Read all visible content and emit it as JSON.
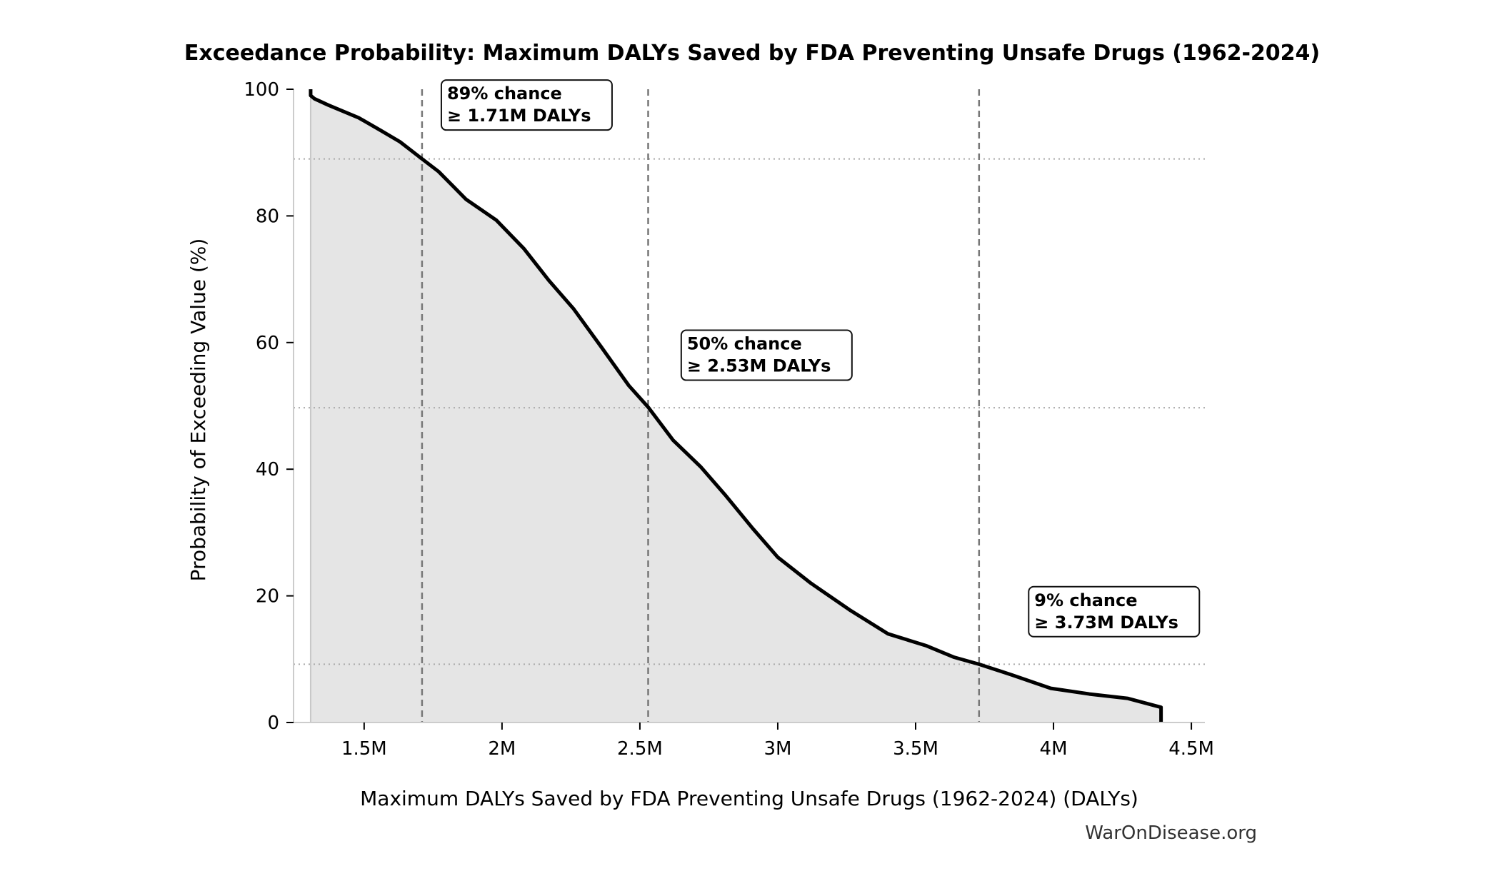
{
  "chart_data": {
    "type": "area",
    "title": "Exceedance Probability: Maximum DALYs Saved by FDA Preventing Unsafe Drugs (1962-2024)",
    "xlabel": "Maximum DALYs Saved by FDA Preventing Unsafe Drugs (1962-2024) (DALYs)",
    "ylabel": "Probability of Exceeding Value (%)",
    "xlim": [
      1.244,
      4.549
    ],
    "ylim": [
      0,
      100
    ],
    "x_unit": "millions of DALYs",
    "xticks": [
      1.5,
      2,
      2.5,
      3,
      3.5,
      4,
      4.5
    ],
    "xtick_labels": [
      "1.5M",
      "2M",
      "2.5M",
      "3M",
      "3.5M",
      "4M",
      "4.5M"
    ],
    "yticks": [
      0,
      20,
      40,
      60,
      80,
      100
    ],
    "ytick_labels": [
      "0",
      "20",
      "40",
      "60",
      "80",
      "100"
    ],
    "grid": false,
    "line_color": "#000000",
    "fill_color": "#e5e5e5",
    "series": [
      {
        "x": [
          1.306,
          1.306,
          1.32,
          1.37,
          1.48,
          1.56,
          1.63,
          1.71,
          1.77,
          1.87,
          1.98,
          2.08,
          2.17,
          2.26,
          2.36,
          2.46,
          2.53,
          2.62,
          2.72,
          2.81,
          2.91,
          3.0,
          3.12,
          3.26,
          3.4,
          3.54,
          3.64,
          3.73,
          3.85,
          3.99,
          4.13,
          4.27,
          4.39,
          4.39
        ],
        "y": [
          100,
          99,
          98.5,
          97.5,
          95.5,
          93.5,
          91.7,
          89,
          87,
          82.6,
          79.3,
          74.8,
          69.8,
          65.3,
          59.3,
          53.2,
          49.8,
          44.6,
          40.4,
          35.9,
          30.6,
          26.1,
          22.0,
          17.8,
          14.0,
          12.1,
          10.3,
          9.2,
          7.5,
          5.4,
          4.5,
          3.8,
          2.4,
          0
        ]
      }
    ],
    "reference_lines": [
      {
        "x": 1.71,
        "y": 89
      },
      {
        "x": 2.53,
        "y": 49.7
      },
      {
        "x": 3.73,
        "y": 9.2
      }
    ],
    "annotations": [
      {
        "line1": "89% chance",
        "line2": "≥ 1.71M DALYs",
        "x": 1.78,
        "y": 97.5
      },
      {
        "line1": "50% chance",
        "line2": "≥ 2.53M DALYs",
        "x": 2.65,
        "y": 58
      },
      {
        "line1": "9% chance",
        "line2": "≥ 3.73M DALYs",
        "x": 3.91,
        "y": 17.5
      }
    ]
  },
  "watermark": "WarOnDisease.org"
}
